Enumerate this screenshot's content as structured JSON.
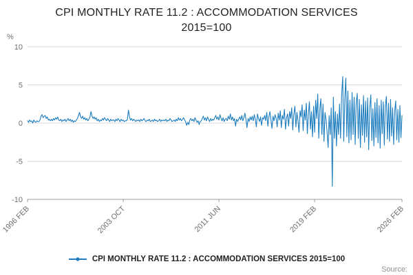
{
  "title_line1": "CPI MONTHLY RATE 11.2 : ACCOMMODATION SERVICES",
  "title_line2": "2015=100",
  "source_label": "Source:",
  "legend": {
    "label": "CPI MONTHLY RATE 11.2 : ACCOMMODATION SERVICES 2015=100"
  },
  "colors": {
    "line": "#1d7dbf",
    "grid": "#d9d9d9",
    "axis_line": "#9b9b9b",
    "axis_text": "#6e6e6e",
    "title_text": "#222222"
  },
  "chart_data": {
    "type": "line",
    "title": "CPI MONTHLY RATE 11.2 : ACCOMMODATION SERVICES 2015=100",
    "xlabel": "",
    "ylabel": "%",
    "ylim": [
      -10,
      10
    ],
    "y_ticks": [
      10,
      5,
      0,
      -5,
      -10
    ],
    "grid": true,
    "legend_position": "bottom",
    "x_start": "1996-02",
    "x_interval": "monthly",
    "x_tick_labels": [
      "1996 FEB",
      "2003 OCT",
      "2011 JUN",
      "2019 FEB",
      "2026 FEB"
    ],
    "x_tick_month_index": [
      0,
      92,
      184,
      276,
      360
    ],
    "values": [
      0.3,
      0.1,
      0.4,
      0.2,
      0.3,
      0.0,
      0.4,
      0.2,
      0.1,
      0.3,
      0.2,
      0.2,
      0.4,
      0.9,
      1.1,
      0.7,
      0.9,
      1.0,
      0.6,
      0.8,
      0.4,
      0.5,
      0.3,
      0.5,
      0.3,
      0.6,
      0.4,
      0.7,
      0.5,
      0.8,
      0.4,
      0.3,
      0.5,
      0.2,
      0.4,
      0.3,
      0.5,
      0.2,
      0.4,
      0.6,
      0.3,
      0.5,
      0.2,
      0.4,
      0.1,
      0.3,
      0.2,
      0.4,
      0.6,
      1.0,
      1.4,
      0.8,
      0.6,
      0.9,
      0.5,
      0.7,
      0.4,
      0.6,
      0.3,
      0.5,
      0.8,
      1.5,
      0.9,
      0.6,
      0.8,
      0.5,
      0.7,
      0.3,
      0.5,
      0.2,
      0.4,
      0.3,
      0.6,
      0.4,
      0.7,
      0.5,
      0.3,
      0.6,
      0.4,
      0.2,
      0.5,
      0.3,
      0.4,
      0.4,
      0.2,
      0.5,
      0.3,
      0.6,
      0.4,
      0.2,
      0.5,
      0.3,
      0.4,
      0.2,
      0.3,
      0.3,
      0.5,
      1.7,
      0.8,
      0.4,
      0.6,
      0.3,
      0.5,
      0.4,
      0.2,
      0.4,
      0.3,
      0.4,
      0.2,
      0.5,
      0.3,
      0.4,
      0.6,
      0.3,
      0.2,
      0.4,
      0.3,
      0.5,
      0.2,
      0.3,
      0.4,
      0.2,
      0.5,
      0.3,
      0.4,
      0.2,
      0.3,
      0.5,
      0.2,
      0.4,
      0.3,
      0.4,
      0.3,
      0.5,
      0.2,
      0.4,
      0.3,
      0.6,
      0.4,
      0.2,
      0.3,
      0.4,
      0.2,
      0.5,
      0.3,
      0.7,
      0.4,
      0.6,
      0.3,
      0.5,
      0.7,
      0.4,
      0.2,
      -0.3,
      0.1,
      -0.2,
      0.4,
      0.6,
      0.3,
      0.5,
      0.2,
      0.7,
      0.4,
      0.1,
      0.3,
      -0.2,
      0.2,
      0.3,
      0.6,
      0.9,
      0.4,
      0.7,
      0.3,
      0.8,
      0.5,
      0.2,
      0.6,
      0.3,
      0.5,
      0.4,
      0.7,
      1.0,
      0.5,
      0.8,
      0.4,
      1.1,
      0.6,
      0.3,
      0.7,
      0.2,
      0.5,
      0.6,
      0.3,
      0.9,
      0.5,
      1.2,
      0.4,
      0.8,
      0.3,
      0.6,
      -0.4,
      0.5,
      0.2,
      0.5,
      0.8,
      0.4,
      1.0,
      0.3,
      0.7,
      1.3,
      0.5,
      -0.6,
      0.6,
      0.2,
      0.8,
      0.4,
      0.9,
      0.3,
      1.1,
      0.5,
      -0.5,
      1.2,
      0.6,
      0.2,
      0.8,
      -0.3,
      0.7,
      0.5,
      1.0,
      0.3,
      1.4,
      -0.4,
      0.8,
      1.5,
      0.4,
      -0.7,
      0.9,
      0.3,
      1.1,
      0.6,
      -0.5,
      1.3,
      0.4,
      1.6,
      -0.6,
      1.0,
      0.5,
      1.8,
      -0.8,
      0.7,
      1.2,
      -0.4,
      1.5,
      0.6,
      2.0,
      -0.9,
      1.1,
      2.2,
      -0.5,
      1.4,
      0.3,
      -1.2,
      1.6,
      0.8,
      2.4,
      -1.0,
      1.7,
      0.4,
      2.6,
      -1.4,
      1.2,
      2.8,
      -0.8,
      1.5,
      -1.8,
      2.2,
      -1.2,
      3.0,
      0.6,
      3.8,
      -2.0,
      1.8,
      3.2,
      -1.5,
      2.5,
      -2.4,
      1.4,
      0.4,
      -1.2,
      -3.2,
      1.0,
      -1.5,
      2.0,
      -8.3,
      3.4,
      -2.0,
      1.5,
      -3.0,
      1.2,
      -1.5,
      2.5,
      -2.0,
      3.8,
      6.1,
      -2.4,
      3.2,
      5.9,
      -1.8,
      4.2,
      -2.6,
      3.0,
      -2.2,
      4.0,
      -1.5,
      3.4,
      -2.8,
      2.6,
      3.9,
      -2.0,
      3.1,
      -3.2,
      2.4,
      -1.6,
      3.6,
      -2.5,
      2.9,
      -1.8,
      3.3,
      -3.5,
      2.1,
      3.7,
      -2.3,
      1.9,
      -3.0,
      2.7,
      -1.9,
      3.2,
      -2.6,
      2.3,
      -3.3,
      3.0,
      -1.4,
      2.8,
      -2.9,
      2.2,
      3.5,
      -2.1,
      2.6,
      -2.4,
      3.1,
      -1.7,
      2.0,
      -2.8,
      1.6,
      2.9,
      -2.2,
      1.8,
      -2.5,
      2.3,
      -1.9,
      1.0
    ]
  }
}
